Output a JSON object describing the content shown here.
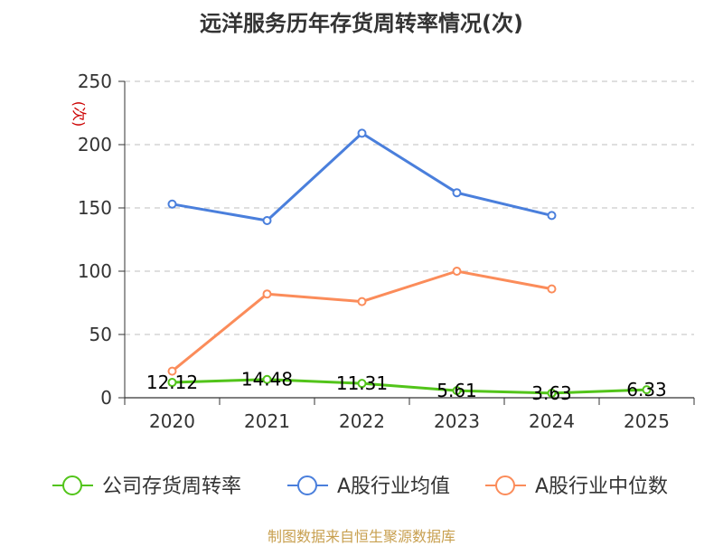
{
  "chart_data": {
    "type": "line",
    "title": "远洋服务历年存货周转率情况(次)",
    "ylabel": "(次)",
    "categories": [
      "2020",
      "2021",
      "2022",
      "2023",
      "2024",
      "2025"
    ],
    "ylim": [
      0,
      250
    ],
    "yticks": [
      0,
      50,
      100,
      150,
      200,
      250
    ],
    "grid": true,
    "legend_position": "bottom",
    "series": [
      {
        "name": "公司存货周转率",
        "color": "#52c41a",
        "values": [
          12.12,
          14.48,
          11.31,
          5.61,
          3.63,
          6.33
        ],
        "labels": [
          "12.12",
          "14.48",
          "11.31",
          "5.61",
          "3.63",
          "6.33"
        ]
      },
      {
        "name": "A股行业均值",
        "color": "#4a7fdc",
        "values": [
          153,
          140,
          209,
          162,
          144,
          null
        ]
      },
      {
        "name": "A股行业中位数",
        "color": "#fb8c5a",
        "values": [
          21,
          82,
          76,
          100,
          86,
          null
        ]
      }
    ]
  },
  "source": "制图数据来自恒生聚源数据库"
}
